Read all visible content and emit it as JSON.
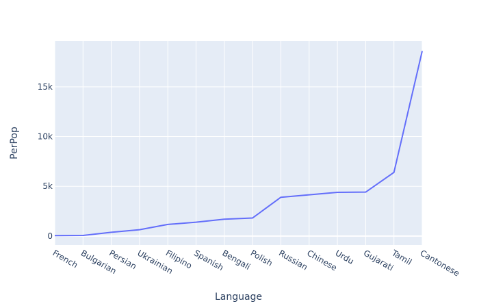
{
  "chart_data": {
    "type": "line",
    "title": "",
    "xlabel": "Language",
    "ylabel": "PerPop",
    "categories": [
      "French",
      "Bulgarian",
      "Persian",
      "Ukrainian",
      "Filipino",
      "Spanish",
      "Bengali",
      "Polish",
      "Russian",
      "Chinese",
      "Urdu",
      "Gujarati",
      "Tamil",
      "Cantonese"
    ],
    "values": [
      50,
      60,
      380,
      640,
      1170,
      1400,
      1700,
      1820,
      3900,
      4150,
      4400,
      4420,
      6400,
      18600
    ],
    "ylim": [
      -900,
      19600
    ],
    "yticks": [
      0,
      5000,
      10000,
      15000
    ],
    "ytick_labels": [
      "0",
      "5k",
      "10k",
      "15k"
    ],
    "grid": true,
    "colors": {
      "plot_bg": "#e5ecf6",
      "grid": "#ffffff",
      "line": "#636efa",
      "text": "#2a3f5f"
    }
  }
}
